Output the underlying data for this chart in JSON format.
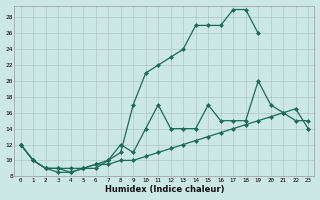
{
  "xlabel": "Humidex (Indice chaleur)",
  "bg_color": "#cce8e4",
  "grid_color": "#b0c8c4",
  "line_color": "#1a6b5a",
  "xlim": [
    -0.5,
    23.5
  ],
  "ylim": [
    8,
    29.5
  ],
  "xticks": [
    0,
    1,
    2,
    3,
    4,
    5,
    6,
    7,
    8,
    9,
    10,
    11,
    12,
    13,
    14,
    15,
    16,
    17,
    18,
    19,
    20,
    21,
    22,
    23
  ],
  "yticks": [
    8,
    10,
    12,
    14,
    16,
    18,
    20,
    22,
    24,
    26,
    28
  ],
  "line_top_x": [
    0,
    1,
    2,
    3,
    4,
    5,
    6,
    7,
    8,
    9,
    10,
    11,
    12,
    13,
    14,
    15,
    16,
    17,
    18,
    19
  ],
  "line_top_y": [
    12,
    10,
    9,
    9,
    9,
    9,
    9,
    10,
    11,
    17,
    21,
    22,
    23,
    24,
    27,
    27,
    27,
    29,
    29,
    26
  ],
  "line_mid_x": [
    0,
    1,
    2,
    3,
    4,
    5,
    6,
    7,
    8,
    9,
    10,
    11,
    12,
    13,
    14,
    15,
    16,
    17,
    18,
    19,
    20,
    21,
    22,
    23
  ],
  "line_mid_y": [
    12,
    10,
    9,
    9,
    8.5,
    9,
    9.5,
    10,
    12,
    11,
    14,
    17,
    14,
    14,
    14,
    17,
    15,
    15,
    15,
    20,
    17,
    16,
    15,
    15
  ],
  "line_bot_x": [
    0,
    1,
    2,
    3,
    4,
    5,
    6,
    7,
    8,
    9,
    10,
    11,
    12,
    13,
    14,
    15,
    16,
    17,
    18,
    19,
    20,
    21,
    22,
    23
  ],
  "line_bot_y": [
    12,
    10,
    9,
    8.5,
    8.5,
    9,
    9.5,
    9.5,
    10,
    10,
    10.5,
    11,
    11.5,
    12,
    12.5,
    13,
    13.5,
    14,
    14.5,
    15,
    15.5,
    16,
    16.5,
    14
  ]
}
